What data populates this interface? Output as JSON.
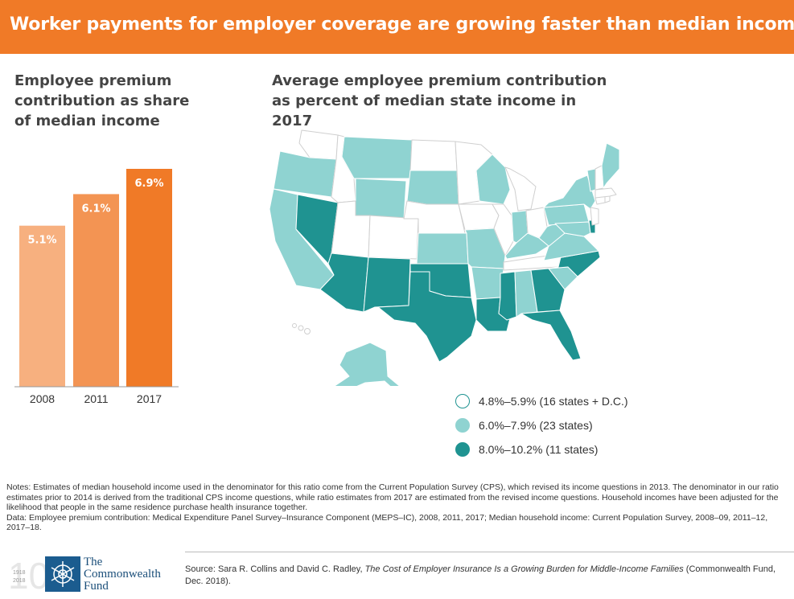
{
  "header": {
    "title": "Worker payments for employer coverage are growing faster than median income."
  },
  "left_title": "Employee premium contribution as share of median income",
  "map_title": "Average employee premium contribution as percent of median state income in 2017",
  "colors": {
    "header": "#f07a27",
    "bar_2008": "#f7b07f",
    "bar_2011": "#f39453",
    "bar_2017": "#f07a27",
    "low": "#ffffff",
    "mid": "#8fd3d1",
    "high": "#1f9391",
    "border": "#ffffff"
  },
  "chart_data": {
    "type": "bar",
    "categories": [
      "2008",
      "2011",
      "2017"
    ],
    "values": [
      5.1,
      6.1,
      6.9
    ],
    "value_labels": [
      "5.1%",
      "6.1%",
      "6.9%"
    ],
    "title": "Employee premium contribution as share of median income",
    "ylim": [
      0,
      6.9
    ]
  },
  "map": {
    "legend": [
      {
        "label": "4.8%–5.9% (16 states + D.C.)",
        "color": "#ffffff",
        "level": "low"
      },
      {
        "label": "6.0%–7.9% (23 states)",
        "color": "#8fd3d1",
        "level": "mid"
      },
      {
        "label": "8.0%–10.2% (11 states)",
        "color": "#1f9391",
        "level": "high"
      }
    ]
  },
  "notes": {
    "line1": "Notes: Estimates of median household income used in the denominator for this ratio come from the Current Population Survey (CPS), which revised its income questions in 2013. The denominator in our ratio estimates prior to 2014 is derived from the traditional CPS income questions, while ratio estimates from 2017 are estimated from the revised income questions. Household incomes have been adjusted for the likelihood that people in the same residence purchase health insurance together.",
    "line2": "Data: Employee premium contribution: Medical Expenditure Panel Survey–Insurance Component (MEPS–IC), 2008, 2011, 2017; Median household income: Current Population Survey, 2008–09, 2011–12, 2017–18."
  },
  "logo": {
    "years_top": "1918",
    "years_bottom": "2018",
    "line1": "The",
    "line2": "Commonwealth",
    "line3": "Fund"
  },
  "source": {
    "prefix": "Source: Sara R. Collins and David C. Radley, ",
    "title": "The Cost of Employer Insurance Is a Growing Burden for Middle-Income Families",
    "suffix": " (Commonwealth Fund, Dec. 2018)."
  }
}
